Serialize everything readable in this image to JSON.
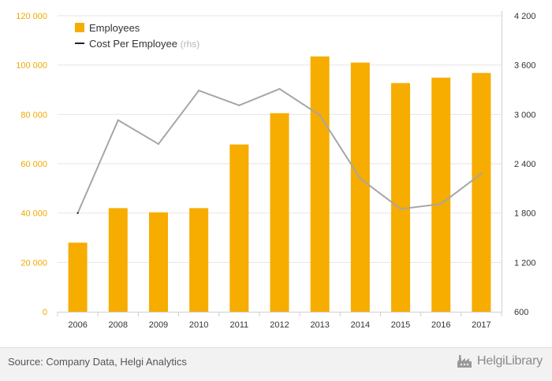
{
  "chart_data": {
    "type": "bar",
    "categories": [
      "2006",
      "2008",
      "2009",
      "2010",
      "2011",
      "2012",
      "2013",
      "2014",
      "2015",
      "2016",
      "2017"
    ],
    "series": [
      {
        "name": "Employees",
        "type": "bar",
        "axis": "left",
        "values": [
          28000,
          42000,
          40300,
          42000,
          67800,
          80500,
          103500,
          101000,
          92700,
          94900,
          96800
        ]
      },
      {
        "name": "Cost Per Employee",
        "name_suffix": "(rhs)",
        "type": "line",
        "axis": "right",
        "values": [
          1800,
          2930,
          2640,
          3290,
          3110,
          3310,
          2990,
          2220,
          1850,
          1910,
          2280
        ]
      }
    ],
    "y_left": {
      "min": 0,
      "max": 120000,
      "ticks": [
        "0",
        "20 000",
        "40 000",
        "60 000",
        "80 000",
        "100 000",
        "120 000"
      ]
    },
    "y_right": {
      "min": 600,
      "max": 4200,
      "ticks": [
        "600",
        "1 200",
        "1 800",
        "2 400",
        "3 000",
        "3 600",
        "4 200"
      ]
    },
    "grid": true,
    "legend": "top-left"
  },
  "colors": {
    "bar": "#f7ac00",
    "line": "#a6a6a6",
    "left_axis_text": "#f0a800",
    "right_axis_text": "#333333",
    "grid": "#e6e6e6"
  },
  "footer": {
    "source": "Source: Company Data, Helgi Analytics",
    "brand": "HelgiLibrary",
    "brand_icon": "factory-icon"
  }
}
